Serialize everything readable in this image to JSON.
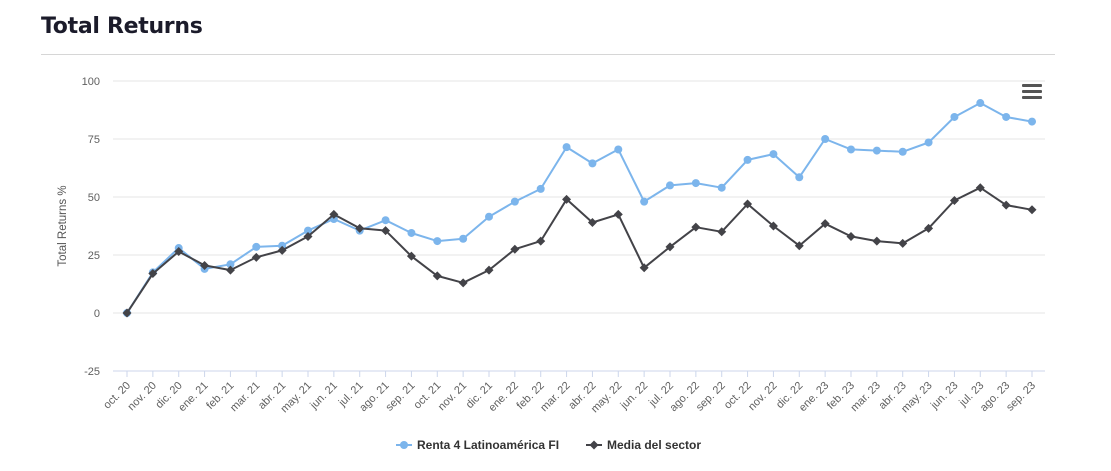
{
  "header": {
    "title": "Total Returns"
  },
  "menu_icon": "hamburger-menu-icon",
  "chart_data": {
    "type": "line",
    "title": "Total Returns",
    "xlabel": "",
    "ylabel": "Total Returns %",
    "ylim": [
      -25,
      100
    ],
    "yticks": [
      "100",
      "75",
      "50",
      "25",
      "0",
      "-25"
    ],
    "grid": true,
    "legend_position": "bottom-center",
    "categories": [
      "oct. 20",
      "nov. 20",
      "dic. 20",
      "ene. 21",
      "feb. 21",
      "mar. 21",
      "abr. 21",
      "may. 21",
      "jun. 21",
      "jul. 21",
      "ago. 21",
      "sep. 21",
      "oct. 21",
      "nov. 21",
      "dic. 21",
      "ene. 22",
      "feb. 22",
      "mar. 22",
      "abr. 22",
      "may. 22",
      "jun. 22",
      "jul. 22",
      "ago. 22",
      "sep. 22",
      "oct. 22",
      "nov. 22",
      "dic. 22",
      "ene. 23",
      "feb. 23",
      "mar. 23",
      "abr. 23",
      "may. 23",
      "jun. 23",
      "jul. 23",
      "ago. 23",
      "sep. 23"
    ],
    "series": [
      {
        "name": "Renta 4 Latinoamérica FI",
        "color": "#7cb5ec",
        "marker": "circle",
        "values": [
          0,
          17.5,
          28,
          19,
          21,
          28.5,
          29,
          35.5,
          40.5,
          35.5,
          40,
          34.5,
          31,
          32,
          41.5,
          48,
          53.5,
          71.5,
          64.5,
          70.5,
          48,
          55,
          56,
          54,
          66,
          68.5,
          58.5,
          75,
          70.5,
          70,
          69.5,
          73.5,
          84.5,
          90.5,
          84.5,
          82.5
        ]
      },
      {
        "name": "Media del sector",
        "color": "#434348",
        "marker": "diamond",
        "values": [
          0,
          17,
          26.5,
          20.5,
          18.5,
          24,
          27,
          33,
          42.5,
          36.5,
          35.5,
          24.5,
          16,
          13,
          18.5,
          27.5,
          31,
          49,
          39,
          42.5,
          19.5,
          28.5,
          37,
          35,
          47,
          37.5,
          29,
          38.5,
          33,
          31,
          30,
          36.5,
          48.5,
          54,
          46.5,
          44.5
        ]
      }
    ]
  }
}
